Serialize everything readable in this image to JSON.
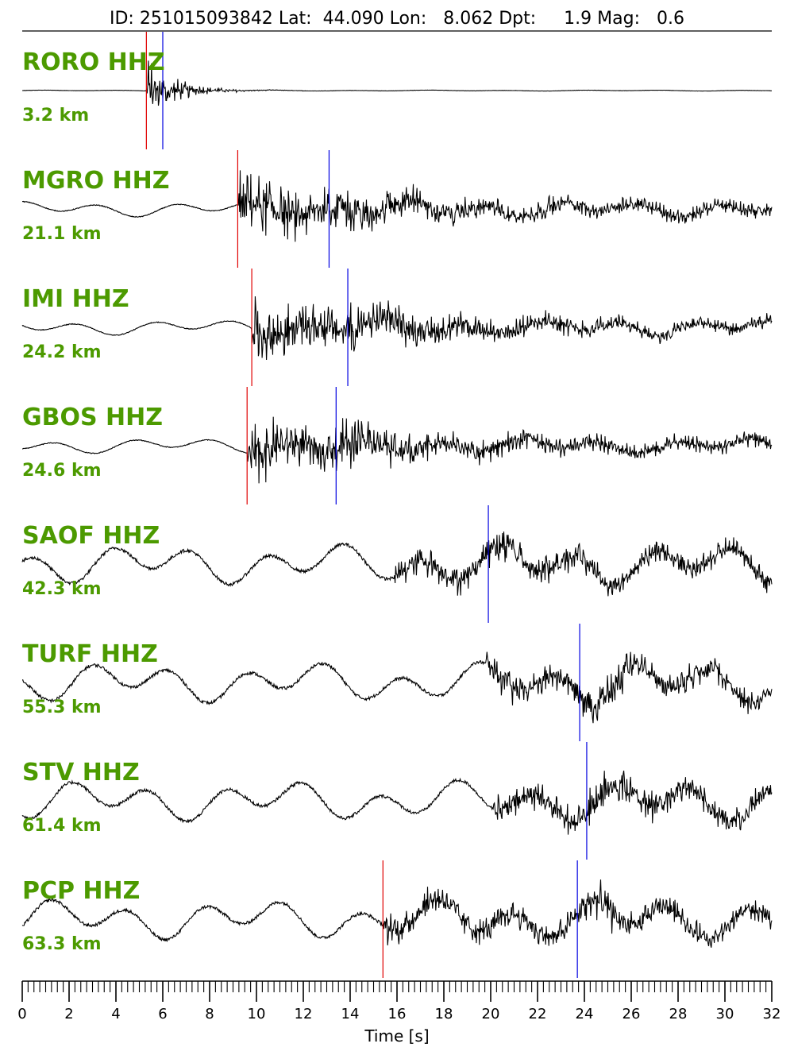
{
  "header": {
    "id_label": "ID:",
    "id": "251015093842",
    "lat_label": "Lat:",
    "lat": "44.090",
    "lon_label": "Lon:",
    "lon": "8.062",
    "dpt_label": "Dpt:",
    "dpt": "1.9",
    "mag_label": "Mag:",
    "mag": "0.6"
  },
  "colors": {
    "label": "#4c9a00",
    "p_pick": "#e00000",
    "s_pick": "#0000e0",
    "trace": "#000000"
  },
  "chart_data": {
    "type": "line",
    "xlabel": "Time [s]",
    "xlim": [
      0,
      32
    ],
    "x_ticks": [
      "0",
      "2",
      "4",
      "6",
      "8",
      "10",
      "12",
      "14",
      "16",
      "18",
      "20",
      "22",
      "24",
      "26",
      "28",
      "30",
      "32"
    ],
    "minor_tick_step": 0.25,
    "series": [
      {
        "name": "RORO HHZ",
        "distance": "3.2 km",
        "p_pick": 5.3,
        "s_pick": 6.0
      },
      {
        "name": "MGRO HHZ",
        "distance": "21.1 km",
        "p_pick": 9.2,
        "s_pick": 13.1
      },
      {
        "name": "IMI HHZ",
        "distance": "24.2 km",
        "p_pick": 9.8,
        "s_pick": 13.9
      },
      {
        "name": "GBOS HHZ",
        "distance": "24.6 km",
        "p_pick": 9.6,
        "s_pick": 13.4
      },
      {
        "name": "SAOF HHZ",
        "distance": "42.3 km",
        "p_pick": null,
        "s_pick": 19.9
      },
      {
        "name": "TURF HHZ",
        "distance": "55.3 km",
        "p_pick": null,
        "s_pick": 23.8
      },
      {
        "name": "STV HHZ",
        "distance": "61.4 km",
        "p_pick": null,
        "s_pick": 24.1
      },
      {
        "name": "PCP HHZ",
        "distance": "63.3 km",
        "p_pick": 15.4,
        "s_pick": 23.7
      }
    ]
  }
}
